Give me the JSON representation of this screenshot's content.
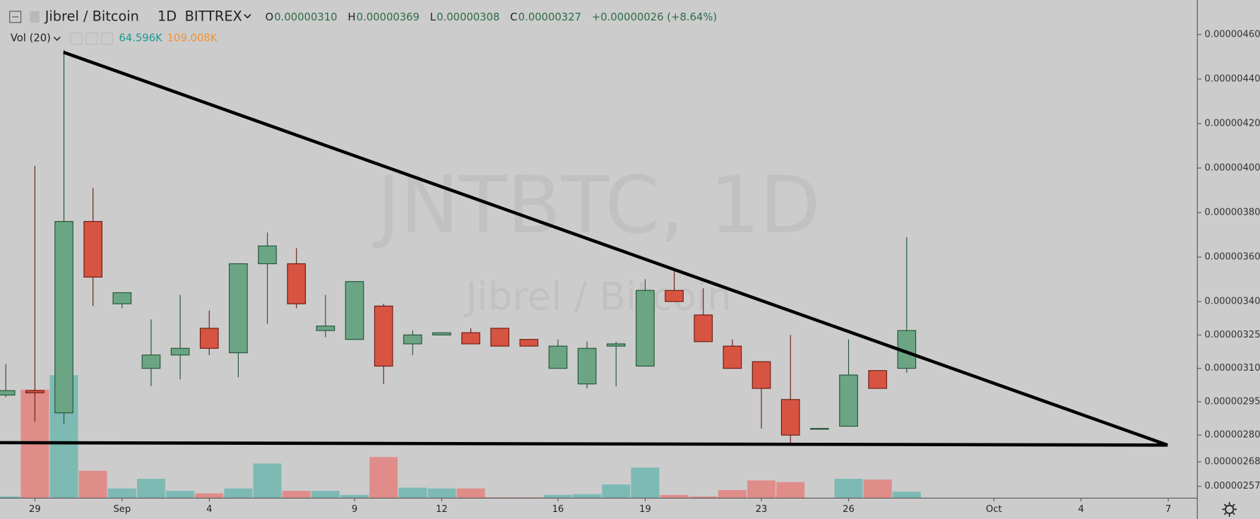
{
  "chart_data": {
    "type": "candlestick",
    "header": {
      "symbol": "Jibrel / Bitcoin",
      "interval": "1D",
      "exchange": "BITTREX",
      "ohlc": [
        {
          "label": "O",
          "value": "0.00000310"
        },
        {
          "label": "H",
          "value": "0.00000369"
        },
        {
          "label": "L",
          "value": "0.00000308"
        },
        {
          "label": "C",
          "value": "0.00000327"
        }
      ],
      "change": "+0.00000026 (+8.64%)",
      "volume_title": "Vol (20)",
      "volume_value": "64.596K",
      "volume_ma": "109.008K"
    },
    "watermark": {
      "title": "JNTBTC, 1D",
      "subtitle": "Jibrel / Bitcoin"
    },
    "x": [
      0,
      1,
      2,
      3,
      4,
      5,
      6,
      7,
      8,
      9,
      10,
      11,
      12,
      13,
      14,
      15,
      16,
      17,
      18,
      19,
      20,
      21,
      22,
      23,
      24,
      25,
      26,
      27,
      28,
      29,
      30,
      31
    ],
    "open": [
      2.98e-06,
      3e-06,
      2.9e-06,
      3.76e-06,
      3.39e-06,
      3.1e-06,
      3.16e-06,
      3.28e-06,
      3.17e-06,
      3.57e-06,
      3.57e-06,
      3.27e-06,
      3.23e-06,
      3.38e-06,
      3.21e-06,
      3.25e-06,
      3.26e-06,
      3.28e-06,
      3.23e-06,
      3.1e-06,
      3.03e-06,
      3.2e-06,
      3.11e-06,
      3.45e-06,
      3.34e-06,
      3.2e-06,
      3.13e-06,
      2.96e-06,
      2.83e-06,
      2.84e-06,
      3.09e-06,
      3.1e-06
    ],
    "high": [
      3.12e-06,
      4.01e-06,
      4.53e-06,
      3.91e-06,
      3.44e-06,
      3.32e-06,
      3.43e-06,
      3.36e-06,
      3.57e-06,
      3.71e-06,
      3.64e-06,
      3.43e-06,
      3.49e-06,
      3.39e-06,
      3.27e-06,
      3.26e-06,
      3.28e-06,
      3.28e-06,
      3.23e-06,
      3.23e-06,
      3.22e-06,
      3.22e-06,
      3.5e-06,
      3.54e-06,
      3.46e-06,
      3.23e-06,
      3.13e-06,
      3.25e-06,
      2.83e-06,
      3.23e-06,
      3.09e-06,
      3.69e-06
    ],
    "low": [
      2.97e-06,
      2.86e-06,
      2.85e-06,
      3.38e-06,
      3.37e-06,
      3.02e-06,
      3.05e-06,
      3.16e-06,
      3.06e-06,
      3.3e-06,
      3.37e-06,
      3.24e-06,
      3.23e-06,
      3.03e-06,
      3.16e-06,
      3.25e-06,
      3.21e-06,
      3.2e-06,
      3.2e-06,
      3.1e-06,
      3.01e-06,
      3.02e-06,
      3.11e-06,
      3.4e-06,
      3.22e-06,
      3.1e-06,
      2.83e-06,
      2.76e-06,
      2.83e-06,
      2.84e-06,
      3.01e-06,
      3.08e-06
    ],
    "close": [
      3e-06,
      2.99e-06,
      3.76e-06,
      3.51e-06,
      3.44e-06,
      3.16e-06,
      3.19e-06,
      3.19e-06,
      3.57e-06,
      3.65e-06,
      3.39e-06,
      3.29e-06,
      3.49e-06,
      3.11e-06,
      3.25e-06,
      3.26e-06,
      3.21e-06,
      3.2e-06,
      3.2e-06,
      3.2e-06,
      3.19e-06,
      3.21e-06,
      3.45e-06,
      3.4e-06,
      3.22e-06,
      3.1e-06,
      3.01e-06,
      2.8e-06,
      2.83e-06,
      3.07e-06,
      3.01e-06,
      3.27e-06
    ],
    "volume": [
      16000,
      1090000,
      1235000,
      275000,
      97000,
      194000,
      73000,
      48000,
      97000,
      347000,
      73000,
      73000,
      32000,
      412000,
      105000,
      97000,
      97000,
      8000,
      8000,
      32000,
      40000,
      137000,
      307000,
      32000,
      16000,
      81000,
      178000,
      162000,
      0,
      194000,
      186000,
      64596
    ],
    "up_color": "#6ba583",
    "up_border": "#225437",
    "down_color": "#d75442",
    "down_border": "#6b1a10",
    "volume_up_color": "#7dbab4",
    "volume_down_color": "#e08d8a",
    "xlim": [
      -0.2,
      41
    ],
    "xticks": [
      {
        "value": 1,
        "label": "29"
      },
      {
        "value": 4,
        "label": "Sep"
      },
      {
        "value": 7,
        "label": "4"
      },
      {
        "value": 12,
        "label": "9"
      },
      {
        "value": 15,
        "label": "12"
      },
      {
        "value": 19,
        "label": "16"
      },
      {
        "value": 22,
        "label": "19"
      },
      {
        "value": 26,
        "label": "23"
      },
      {
        "value": 29,
        "label": "26"
      },
      {
        "value": 34,
        "label": "Oct"
      },
      {
        "value": 37,
        "label": "4"
      },
      {
        "value": 40,
        "label": "7"
      }
    ],
    "ylim": [
      2.517e-06,
      4.755e-06
    ],
    "yticks": [
      {
        "value": 4.6e-06,
        "label": "0.00000460"
      },
      {
        "value": 4.4e-06,
        "label": "0.00000440"
      },
      {
        "value": 4.2e-06,
        "label": "0.00000420"
      },
      {
        "value": 4e-06,
        "label": "0.00000400"
      },
      {
        "value": 3.8e-06,
        "label": "0.00000380"
      },
      {
        "value": 3.6e-06,
        "label": "0.00000360"
      },
      {
        "value": 3.4e-06,
        "label": "0.00000340"
      },
      {
        "value": 3.25e-06,
        "label": "0.00000325"
      },
      {
        "value": 3.1e-06,
        "label": "0.00000310"
      },
      {
        "value": 2.95e-06,
        "label": "0.00000295"
      },
      {
        "value": 2.8e-06,
        "label": "0.00000280"
      },
      {
        "value": 2.68e-06,
        "label": "0.00000268"
      },
      {
        "value": 2.57e-06,
        "label": "0.00000257"
      }
    ]
  }
}
